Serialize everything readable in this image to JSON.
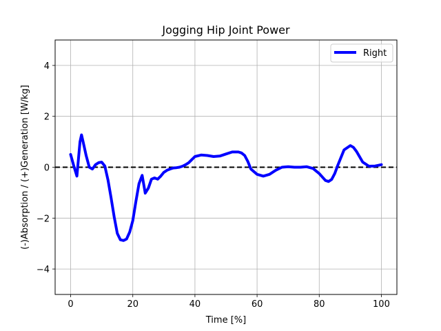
{
  "chart_data": {
    "type": "line",
    "title": "Jogging Hip Joint Power",
    "xlabel": "Time [%]",
    "ylabel": "(-)Absorption / (+)Generation [W/kg]",
    "xlim": [
      -5,
      105
    ],
    "ylim": [
      -5,
      5
    ],
    "xticks": [
      0,
      20,
      40,
      60,
      80,
      100
    ],
    "yticks": [
      -4,
      -2,
      0,
      2,
      4
    ],
    "grid": true,
    "legend_position": "top-right",
    "reference_line": {
      "y": 0,
      "style": "dashed",
      "color": "#000000"
    },
    "series": [
      {
        "name": "Right",
        "color": "#0000ff",
        "x": [
          0,
          1,
          2,
          3,
          3.5,
          4,
          5,
          6,
          7,
          8,
          9,
          10,
          11,
          12,
          13,
          14,
          15,
          16,
          17,
          18,
          19,
          20,
          21,
          22,
          23,
          24,
          25,
          26,
          27,
          28,
          29,
          30,
          31,
          32,
          33,
          34,
          35,
          36,
          37,
          38,
          39,
          40,
          42,
          44,
          46,
          48,
          50,
          52,
          54,
          55,
          56,
          57,
          58,
          60,
          62,
          64,
          66,
          68,
          70,
          72,
          74,
          76,
          78,
          80,
          82,
          83,
          84,
          85,
          86,
          88,
          90,
          91,
          92,
          94,
          96,
          98,
          100
        ],
        "y": [
          0.5,
          0.05,
          -0.35,
          1.0,
          1.27,
          1.0,
          0.45,
          0.0,
          -0.07,
          0.1,
          0.18,
          0.2,
          0.05,
          -0.5,
          -1.2,
          -1.95,
          -2.6,
          -2.85,
          -2.88,
          -2.82,
          -2.55,
          -2.1,
          -1.35,
          -0.65,
          -0.32,
          -1.02,
          -0.82,
          -0.47,
          -0.42,
          -0.47,
          -0.35,
          -0.2,
          -0.12,
          -0.07,
          -0.03,
          -0.02,
          0.0,
          0.04,
          0.1,
          0.18,
          0.3,
          0.42,
          0.48,
          0.46,
          0.42,
          0.44,
          0.52,
          0.6,
          0.6,
          0.56,
          0.46,
          0.23,
          -0.07,
          -0.28,
          -0.35,
          -0.28,
          -0.12,
          0.0,
          0.02,
          0.0,
          0.0,
          0.02,
          -0.05,
          -0.25,
          -0.52,
          -0.56,
          -0.48,
          -0.25,
          0.08,
          0.68,
          0.85,
          0.78,
          0.62,
          0.2,
          0.04,
          0.05,
          0.1
        ]
      }
    ]
  }
}
